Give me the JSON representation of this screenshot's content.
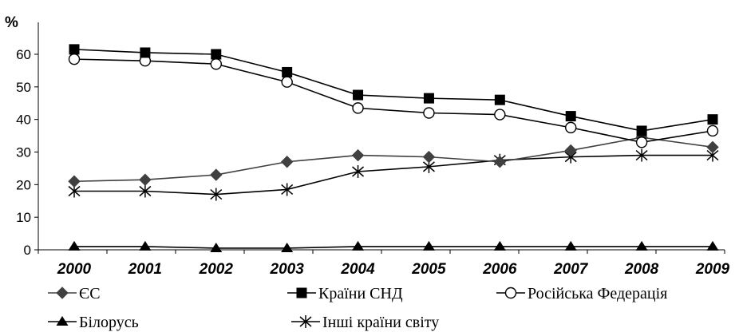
{
  "chart_data": {
    "type": "line",
    "title": "",
    "xlabel": "",
    "ylabel": "%",
    "ylim": [
      0,
      60
    ],
    "yticks": [
      0,
      10,
      20,
      30,
      40,
      50,
      60
    ],
    "grid": false,
    "legend_position": "bottom",
    "categories": [
      "2000",
      "2001",
      "2002",
      "2003",
      "2004",
      "2005",
      "2006",
      "2007",
      "2008",
      "2009"
    ],
    "series": [
      {
        "name": "ЄС",
        "marker": "diamond",
        "color": "#404040",
        "values": [
          21,
          21.5,
          23,
          27,
          29,
          28.5,
          27,
          30.5,
          34.5,
          31.5
        ]
      },
      {
        "name": "Країни СНД",
        "marker": "square",
        "color": "#000000",
        "values": [
          61.5,
          60.5,
          60,
          54.5,
          47.5,
          46.5,
          46,
          41,
          36.5,
          40
        ]
      },
      {
        "name": "Російська Федерація",
        "marker": "circle-open",
        "color": "#000000",
        "values": [
          58.5,
          58,
          57,
          51.5,
          43.5,
          42,
          41.5,
          37.5,
          33,
          36.5
        ]
      },
      {
        "name": "Білорусь",
        "marker": "triangle",
        "color": "#000000",
        "values": [
          1,
          1,
          0.5,
          0.5,
          1,
          1,
          1,
          1,
          1,
          1
        ]
      },
      {
        "name": "Інші країни світу",
        "marker": "star",
        "color": "#000000",
        "values": [
          18,
          18,
          17,
          18.5,
          24,
          25.5,
          27.5,
          28.5,
          29,
          29
        ]
      }
    ]
  }
}
